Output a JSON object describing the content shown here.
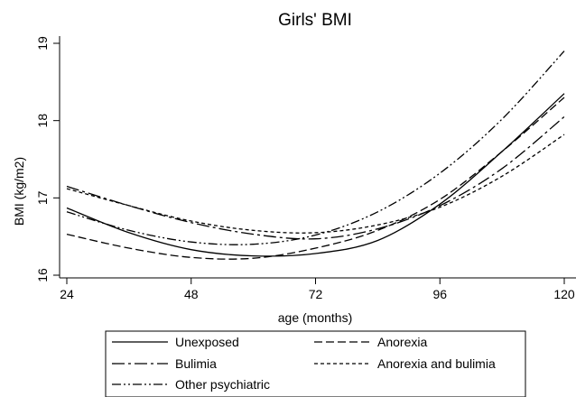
{
  "chart_data": {
    "type": "line",
    "title": "Girls' BMI",
    "xlabel": "age (months)",
    "ylabel": "BMI (kg/m2)",
    "xlim": [
      24,
      120
    ],
    "ylim": [
      16,
      19
    ],
    "xticks": [
      24,
      48,
      72,
      96,
      120
    ],
    "yticks": [
      16,
      17,
      18,
      19
    ],
    "grid": false,
    "legend_position": "bottom",
    "series": [
      {
        "name": "Unexposed",
        "dash": "solid",
        "points": [
          [
            24,
            16.87
          ],
          [
            36,
            16.55
          ],
          [
            48,
            16.33
          ],
          [
            60,
            16.25
          ],
          [
            72,
            16.28
          ],
          [
            84,
            16.45
          ],
          [
            96,
            16.92
          ],
          [
            108,
            17.6
          ],
          [
            120,
            18.35
          ]
        ]
      },
      {
        "name": "Anorexia",
        "dash": "dash",
        "points": [
          [
            24,
            16.53
          ],
          [
            36,
            16.35
          ],
          [
            48,
            16.23
          ],
          [
            60,
            16.22
          ],
          [
            72,
            16.35
          ],
          [
            84,
            16.58
          ],
          [
            96,
            16.98
          ],
          [
            108,
            17.6
          ],
          [
            120,
            18.3
          ]
        ]
      },
      {
        "name": "Bulimia",
        "dash": "dashdot",
        "points": [
          [
            24,
            17.15
          ],
          [
            36,
            16.9
          ],
          [
            48,
            16.68
          ],
          [
            60,
            16.53
          ],
          [
            72,
            16.47
          ],
          [
            84,
            16.6
          ],
          [
            96,
            16.9
          ],
          [
            108,
            17.38
          ],
          [
            120,
            18.05
          ]
        ]
      },
      {
        "name": "Anorexia and bulimia",
        "dash": "shortdash",
        "points": [
          [
            24,
            17.12
          ],
          [
            36,
            16.9
          ],
          [
            48,
            16.7
          ],
          [
            60,
            16.58
          ],
          [
            72,
            16.55
          ],
          [
            84,
            16.65
          ],
          [
            96,
            16.88
          ],
          [
            108,
            17.28
          ],
          [
            120,
            17.82
          ]
        ]
      },
      {
        "name": "Other psychiatric",
        "dash": "dashdotdot",
        "points": [
          [
            24,
            16.82
          ],
          [
            36,
            16.58
          ],
          [
            48,
            16.43
          ],
          [
            60,
            16.4
          ],
          [
            72,
            16.52
          ],
          [
            84,
            16.82
          ],
          [
            96,
            17.32
          ],
          [
            108,
            18.02
          ],
          [
            120,
            18.9
          ]
        ]
      }
    ]
  }
}
